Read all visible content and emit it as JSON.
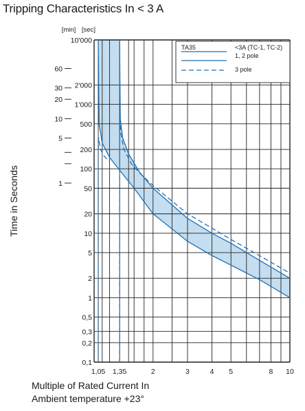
{
  "chart_data": {
    "type": "line",
    "title": "Tripping Characteristics In < 3 A",
    "ylabel": "Time in Seconds",
    "xlabel_line1": "Multiple of Rated Current In",
    "xlabel_line2": "Ambient temperature +23°",
    "x_scale": "log",
    "y_scale": "log",
    "xlim": [
      1,
      10
    ],
    "ylim": [
      0.1,
      10000
    ],
    "grid": true,
    "y_unit_headers": {
      "min": "[min]",
      "sec": "[sec]"
    },
    "x_ticks": [
      {
        "label": "1,05",
        "value": 1.05
      },
      {
        "label": "1,35",
        "value": 1.35
      },
      {
        "label": "2",
        "value": 2
      },
      {
        "label": "3",
        "value": 3
      },
      {
        "label": "4",
        "value": 4
      },
      {
        "label": "5",
        "value": 5
      },
      {
        "label": "8",
        "value": 8
      },
      {
        "label": "10",
        "value": 10
      }
    ],
    "y_ticks_sec": [
      {
        "label": "10'000",
        "value": 10000
      },
      {
        "label": "2'000",
        "value": 2000
      },
      {
        "label": "1'000",
        "value": 1000
      },
      {
        "label": "500",
        "value": 500
      },
      {
        "label": "200",
        "value": 200
      },
      {
        "label": "100",
        "value": 100
      },
      {
        "label": "50",
        "value": 50
      },
      {
        "label": "20",
        "value": 20
      },
      {
        "label": "10",
        "value": 10
      },
      {
        "label": "5",
        "value": 5
      },
      {
        "label": "2",
        "value": 2
      },
      {
        "label": "1",
        "value": 1
      },
      {
        "label": "0,5",
        "value": 0.5
      },
      {
        "label": "0,3",
        "value": 0.3
      },
      {
        "label": "0,2",
        "value": 0.2
      },
      {
        "label": "0,1",
        "value": 0.1
      }
    ],
    "y_ticks_min": [
      {
        "label": "60",
        "value": 3600
      },
      {
        "label": "30",
        "value": 1800
      },
      {
        "label": "20",
        "value": 1200
      },
      {
        "label": "10",
        "value": 600
      },
      {
        "label": "5",
        "value": 300
      },
      {
        "label": "",
        "value": 180
      },
      {
        "label": "",
        "value": 120
      },
      {
        "label": "1",
        "value": 60
      }
    ],
    "legend": {
      "title": "TA35",
      "position": "top-right",
      "entries": [
        {
          "label": "<3A (TC-1, TC-2)",
          "style": "solid"
        },
        {
          "label": "1, 2 pole",
          "style": "solid"
        },
        {
          "label": "3 pole",
          "style": "dashed"
        }
      ]
    },
    "colors": {
      "curve": "#1f6fb2",
      "band_fill": "#c4ddf0",
      "grid": "#222222"
    },
    "series": [
      {
        "name": "1, 2 pole",
        "style": "solid",
        "lower": {
          "x": [
            1.05,
            1.06,
            1.1,
            1.2,
            1.35,
            1.6,
            2,
            3,
            4,
            5,
            7,
            10
          ],
          "y": [
            10000,
            500,
            250,
            150,
            95,
            50,
            20,
            7.5,
            4.5,
            3.2,
            1.9,
            1.0
          ]
        },
        "upper": {
          "x": [
            1.35,
            1.36,
            1.4,
            1.5,
            1.7,
            2,
            3,
            4,
            5,
            7,
            10
          ],
          "y": [
            10000,
            600,
            300,
            170,
            90,
            50,
            17,
            10,
            7,
            3.8,
            2.0
          ]
        }
      },
      {
        "name": "3 pole",
        "style": "dashed",
        "lower": {
          "x": [
            1.05,
            1.05,
            1.055,
            1.08,
            1.12,
            1.2
          ],
          "y": [
            0.1,
            150,
            300,
            200,
            160,
            130
          ]
        },
        "upper": {
          "x": [
            1.35,
            1.35,
            1.37,
            1.42,
            1.55,
            1.75,
            2,
            3,
            4,
            5,
            7,
            10
          ],
          "y": [
            0.1,
            600,
            350,
            200,
            120,
            80,
            55,
            20,
            12,
            8,
            4.5,
            2.4
          ]
        }
      }
    ]
  }
}
